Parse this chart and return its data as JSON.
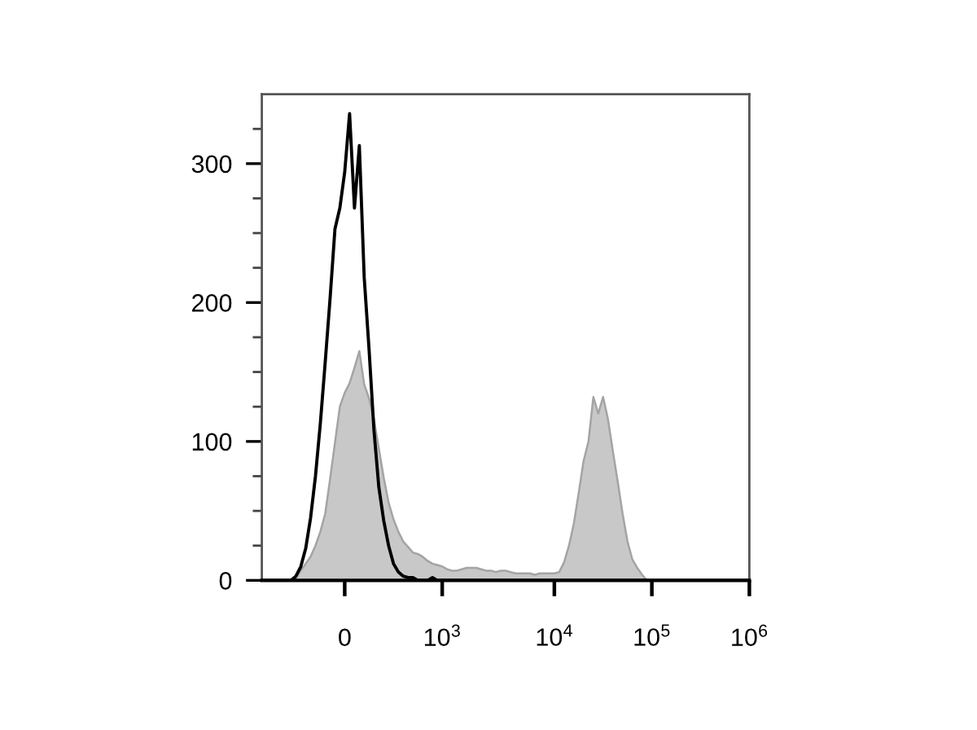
{
  "chart_data": {
    "type": "area",
    "categories": [
      null,
      null,
      null,
      null,
      null,
      null,
      null,
      null,
      null,
      null,
      null,
      null,
      null,
      null,
      null,
      null,
      null,
      "0",
      null,
      null,
      null,
      null,
      null,
      null,
      null,
      null,
      null,
      null,
      null,
      null,
      null,
      null,
      null,
      null,
      null,
      null,
      null,
      "10$^{3}$",
      null,
      null,
      null,
      null,
      null,
      null,
      null,
      null,
      null,
      null,
      null,
      null,
      null,
      null,
      null,
      null,
      null,
      null,
      null,
      null,
      null,
      null,
      "10$^{4}$",
      null,
      null,
      null,
      null,
      null,
      null,
      null,
      null,
      null,
      null,
      null,
      null,
      null,
      null,
      null,
      null,
      null,
      null,
      null,
      "10$^{5}$",
      null,
      null,
      null,
      null,
      null,
      null,
      null,
      null,
      null,
      null,
      null,
      null,
      null,
      null,
      null,
      null,
      null,
      null,
      null,
      "10$^{6}$"
    ],
    "series": [
      {
        "color": "#c8c8c8",
        "values": [
          0,
          0,
          0,
          0,
          0,
          0,
          0,
          2,
          7,
          12,
          17,
          25,
          35,
          48,
          73,
          99,
          125,
          135,
          142,
          153,
          165,
          141,
          131,
          116,
          95,
          74,
          56,
          44,
          35,
          28,
          24,
          20,
          19,
          17,
          14,
          12,
          11,
          10,
          8,
          7,
          7,
          8,
          9,
          9,
          9,
          8,
          7,
          7,
          6,
          7,
          7,
          6,
          5,
          5,
          5,
          5,
          4,
          5,
          5,
          5,
          5,
          6,
          13,
          25,
          41,
          63,
          86,
          100,
          132,
          120,
          132,
          116,
          93,
          71,
          48,
          28,
          15,
          9,
          4,
          0,
          0,
          0,
          0,
          0,
          0,
          0,
          0,
          0,
          0,
          0,
          0,
          0,
          0,
          0,
          0,
          0,
          0,
          0,
          0,
          0,
          0
        ]
      },
      {
        "type": "line",
        "color": "#000000",
        "values": [
          0,
          0,
          0,
          0,
          0,
          0,
          0,
          3,
          10,
          23,
          45,
          75,
          113,
          157,
          203,
          253,
          268,
          294,
          336,
          268,
          313,
          218,
          166,
          108,
          67,
          43,
          25,
          12,
          6,
          3,
          2,
          2,
          0,
          0,
          0,
          2,
          0,
          0,
          0,
          0,
          0,
          0,
          0,
          0,
          0,
          0,
          0,
          0,
          0,
          0,
          0,
          0,
          0,
          0,
          0,
          0,
          0,
          0,
          0,
          0,
          0,
          0,
          0,
          0,
          0,
          0,
          0,
          0,
          0,
          0,
          0,
          0,
          0,
          0,
          0,
          0,
          0,
          0,
          0,
          0,
          0,
          0,
          0,
          0,
          0,
          0,
          0,
          0,
          0,
          0,
          0,
          0,
          0,
          0,
          0,
          0,
          0,
          0,
          0,
          0,
          0
        ]
      }
    ],
    "ylim": [
      0,
      350
    ],
    "yticks": [
      0,
      100,
      200,
      300,
      {
        "value": 25,
        "label": null
      },
      {
        "value": 50,
        "label": null
      },
      {
        "value": 75,
        "label": null
      },
      {
        "value": 125,
        "label": null
      },
      {
        "value": 150,
        "label": null
      },
      {
        "value": 175,
        "label": null
      },
      {
        "value": 225,
        "label": null
      },
      {
        "value": 250,
        "label": null
      },
      {
        "value": 275,
        "label": null
      },
      {
        "value": 325,
        "label": null
      }
    ],
    "grid": false,
    "legend": false
  }
}
